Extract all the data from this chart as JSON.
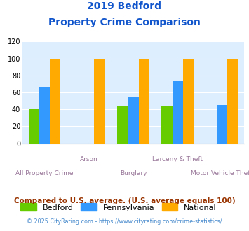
{
  "title_line1": "2019 Bedford",
  "title_line2": "Property Crime Comparison",
  "categories": [
    "All Property Crime",
    "Arson",
    "Burglary",
    "Larceny & Theft",
    "Motor Vehicle Theft"
  ],
  "bedford": [
    40,
    0,
    44,
    44,
    0
  ],
  "pennsylvania": [
    67,
    0,
    54,
    73,
    45
  ],
  "national": [
    100,
    100,
    100,
    100,
    100
  ],
  "bedford_color": "#66cc00",
  "pennsylvania_color": "#3399ff",
  "national_color": "#ffaa00",
  "ylim": [
    0,
    120
  ],
  "yticks": [
    0,
    20,
    40,
    60,
    80,
    100,
    120
  ],
  "bg_color": "#ddeeff",
  "title_color": "#1155cc",
  "xlabel_color": "#997799",
  "legend_labels": [
    "Bedford",
    "Pennsylvania",
    "National"
  ],
  "footnote1": "Compared to U.S. average. (U.S. average equals 100)",
  "footnote2": "© 2025 CityRating.com - https://www.cityrating.com/crime-statistics/",
  "footnote1_color": "#993300",
  "footnote2_color": "#4488cc"
}
